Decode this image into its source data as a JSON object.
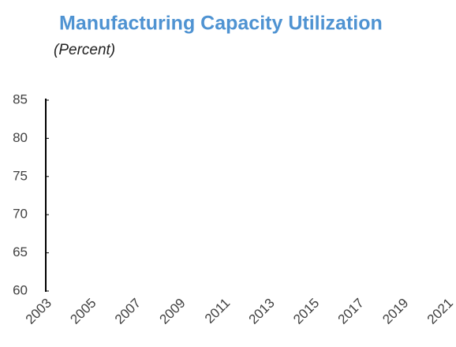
{
  "chart_data": {
    "type": "line",
    "title": "Manufacturing Capacity Utilization",
    "subtitle": "(Percent)",
    "categories": [
      "2003",
      "2005",
      "2007",
      "2009",
      "2011",
      "2013",
      "2015",
      "2017",
      "2019",
      "2021"
    ],
    "series": [],
    "ylim": [
      60,
      85
    ],
    "yticks": [
      60,
      65,
      70,
      75,
      80,
      85
    ],
    "grid": false
  }
}
